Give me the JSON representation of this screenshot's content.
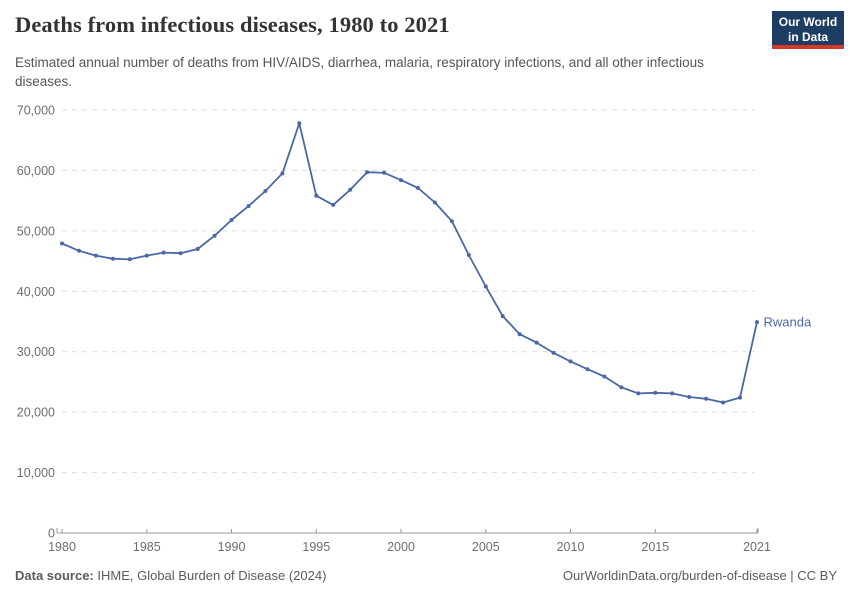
{
  "header": {
    "title": "Deaths from infectious diseases, 1980 to 2021",
    "subtitle": "Estimated annual number of deaths from HIV/AIDS, diarrhea, malaria, respiratory infections, and all other infectious diseases.",
    "logo": {
      "line1": "Our World",
      "line2": "in Data"
    }
  },
  "chart_data": {
    "type": "line",
    "title": "Deaths from infectious diseases, 1980 to 2021",
    "entity_label": "Rwanda",
    "x": [
      1980,
      1981,
      1982,
      1983,
      1984,
      1985,
      1986,
      1987,
      1988,
      1989,
      1990,
      1991,
      1992,
      1993,
      1994,
      1995,
      1996,
      1997,
      1998,
      1999,
      2000,
      2001,
      2002,
      2003,
      2004,
      2005,
      2006,
      2007,
      2008,
      2009,
      2010,
      2011,
      2012,
      2013,
      2014,
      2015,
      2016,
      2017,
      2018,
      2019,
      2020,
      2021
    ],
    "series": [
      {
        "name": "Rwanda",
        "color": "#4a68a5",
        "values": [
          47900,
          46700,
          45900,
          45400,
          45300,
          45900,
          46400,
          46300,
          47000,
          49200,
          51800,
          54100,
          56600,
          59500,
          67800,
          55800,
          54300,
          56800,
          59700,
          59600,
          58400,
          57100,
          54700,
          51600,
          46000,
          40800,
          35900,
          32900,
          31500,
          29800,
          28400,
          27100,
          25900,
          24100,
          23100,
          23200,
          23100,
          22500,
          22200,
          21600,
          22400,
          34900
        ]
      }
    ],
    "xlabel": "",
    "ylabel": "",
    "xlim": [
      1980,
      2021
    ],
    "ylim": [
      0,
      70000
    ],
    "xticks": [
      1980,
      1985,
      1990,
      1995,
      2000,
      2005,
      2010,
      2015,
      2021
    ],
    "yticks": [
      0,
      10000,
      20000,
      30000,
      40000,
      50000,
      60000,
      70000
    ],
    "grid": true,
    "gridline_style": "dashed",
    "legend_position": "end-of-line-label"
  },
  "footer": {
    "datasource_label": "Data source:",
    "datasource_value": "IHME, Global Burden of Disease (2024)",
    "link": "OurWorldinData.org/burden-of-disease | CC BY"
  },
  "colors": {
    "background": "#ffffff",
    "title": "#333333",
    "subtitle": "#555555",
    "footer": "#5b5b5b",
    "line": "#4a68a5",
    "grid": "#dcdcdc",
    "axis": "#999999",
    "tick_label": "#6e6e6e",
    "logo_bg": "#1d3d63",
    "logo_accent": "#d7362b"
  }
}
